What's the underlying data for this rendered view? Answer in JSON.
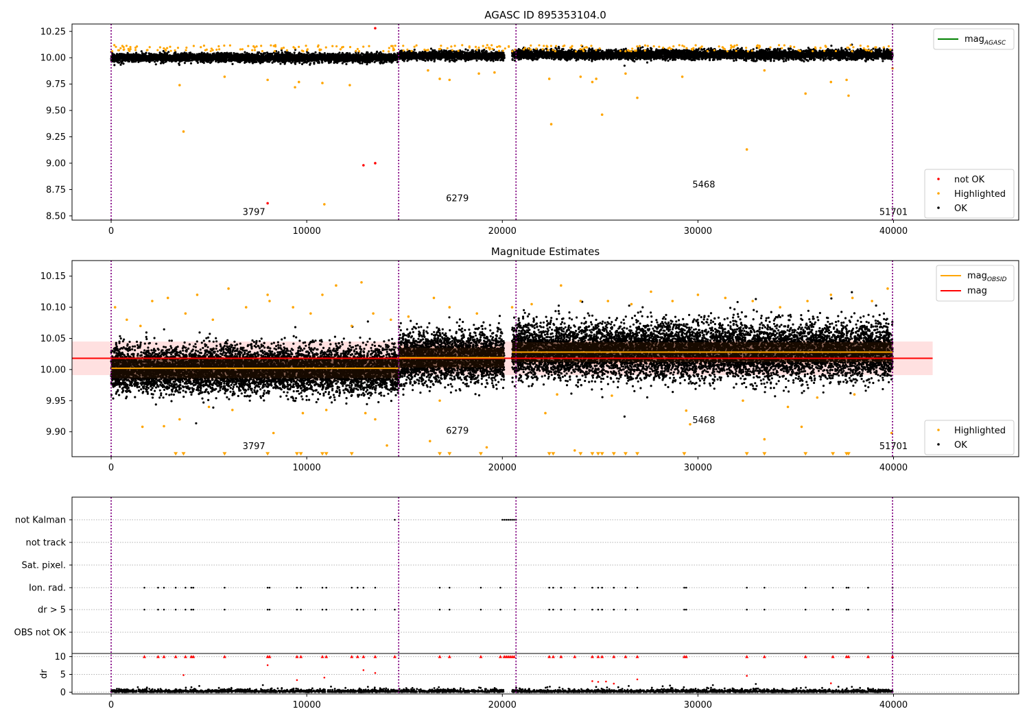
{
  "chart_data": [
    {
      "type": "scatter",
      "title": "AGASC ID 895353104.0",
      "xlim": [
        -2000,
        46400
      ],
      "ylim": [
        8.46,
        10.32
      ],
      "xticks": [
        0,
        10000,
        20000,
        30000,
        40000
      ],
      "xtick_labels": [
        "0",
        "10000",
        "20000",
        "30000",
        "40000"
      ],
      "yticks": [
        8.5,
        8.75,
        9.0,
        9.25,
        9.5,
        9.75,
        10.0,
        10.25
      ],
      "ytick_labels": [
        "8.50",
        "8.75",
        "9.00",
        "9.25",
        "9.50",
        "9.75",
        "10.00",
        "10.25"
      ],
      "obsid_boundaries": [
        0,
        14700,
        20700,
        39950
      ],
      "obsid_labels": [
        {
          "text": "3797",
          "x": 7300,
          "y": 8.51
        },
        {
          "text": "6279",
          "x": 17700,
          "y": 8.64
        },
        {
          "text": "5468",
          "x": 30300,
          "y": 8.77
        },
        {
          "text": "51701",
          "x": 40000,
          "y": 8.51
        }
      ],
      "line_legend": {
        "position": "upper right",
        "entries": [
          {
            "label": "mag",
            "sub": "AGASC",
            "color": "#008000"
          }
        ]
      },
      "marker_legend": {
        "position": "lower right",
        "entries": [
          {
            "label": "not OK",
            "color": "#ff0000"
          },
          {
            "label": "Highlighted",
            "color": "#ffa500"
          },
          {
            "label": "OK",
            "color": "#000000"
          }
        ]
      },
      "series": [
        {
          "name": "OK",
          "color": "#000000",
          "segments": [
            {
              "x_range": [
                0,
                14700
              ],
              "center": 10.0,
              "spread": 0.02
            },
            {
              "x_range": [
                14700,
                20100
              ],
              "center": 10.02,
              "spread": 0.02
            },
            {
              "x_range": [
                20500,
                39950
              ],
              "center": 10.03,
              "spread": 0.022
            }
          ]
        },
        {
          "name": "Highlighted",
          "color": "#ffa500",
          "points": [
            [
              3500,
              9.74
            ],
            [
              3700,
              9.3
            ],
            [
              5800,
              9.82
            ],
            [
              8000,
              9.79
            ],
            [
              9400,
              9.72
            ],
            [
              9600,
              9.77
            ],
            [
              10800,
              9.76
            ],
            [
              10900,
              8.61
            ],
            [
              12200,
              9.74
            ],
            [
              16200,
              9.88
            ],
            [
              16800,
              9.8
            ],
            [
              17300,
              9.79
            ],
            [
              18800,
              9.85
            ],
            [
              19600,
              9.86
            ],
            [
              22400,
              9.8
            ],
            [
              22500,
              9.37
            ],
            [
              24000,
              9.82
            ],
            [
              24600,
              9.77
            ],
            [
              24800,
              9.8
            ],
            [
              25100,
              9.46
            ],
            [
              26300,
              9.85
            ],
            [
              26900,
              9.62
            ],
            [
              29200,
              9.82
            ],
            [
              32500,
              9.13
            ],
            [
              33400,
              9.88
            ],
            [
              35500,
              9.66
            ],
            [
              36800,
              9.77
            ],
            [
              37600,
              9.79
            ],
            [
              37700,
              9.64
            ],
            [
              39950,
              9.9
            ]
          ]
        },
        {
          "name": "not OK",
          "color": "#ff0000",
          "points": [
            [
              8000,
              8.62
            ],
            [
              12900,
              8.98
            ],
            [
              13500,
              9.0
            ],
            [
              13500,
              10.28
            ]
          ]
        }
      ]
    },
    {
      "type": "scatter",
      "title": "Magnitude Estimates",
      "xlim": [
        -2000,
        46400
      ],
      "ylim": [
        9.86,
        10.175
      ],
      "xticks": [
        0,
        10000,
        20000,
        30000,
        40000
      ],
      "xtick_labels": [
        "0",
        "10000",
        "20000",
        "30000",
        "40000"
      ],
      "yticks": [
        9.9,
        9.95,
        10.0,
        10.05,
        10.1,
        10.15
      ],
      "ytick_labels": [
        "9.90",
        "9.95",
        "10.00",
        "10.05",
        "10.10",
        "10.15"
      ],
      "obsid_boundaries": [
        0,
        14700,
        20700,
        39950
      ],
      "obsid_labels": [
        {
          "text": "3797",
          "x": 7300,
          "y": 9.872
        },
        {
          "text": "6279",
          "x": 17700,
          "y": 9.897
        },
        {
          "text": "5468",
          "x": 30300,
          "y": 9.914
        },
        {
          "text": "51701",
          "x": 40000,
          "y": 9.872
        }
      ],
      "mag_band": {
        "center": 10.018,
        "half_width": 0.027,
        "x_range": [
          -2000,
          42000
        ]
      },
      "mag_obsid": [
        {
          "x_range": [
            0,
            14700
          ],
          "value": 10.002
        },
        {
          "x_range": [
            14700,
            20100
          ],
          "value": 10.019
        },
        {
          "x_range": [
            20500,
            39950
          ],
          "value": 10.028
        }
      ],
      "line_legend": {
        "position": "upper right",
        "entries": [
          {
            "label": "mag",
            "sub": "OBSID",
            "color": "#ffa500"
          },
          {
            "label": "mag",
            "sub": "",
            "color": "#ff0000"
          }
        ]
      },
      "marker_legend": {
        "position": "lower right",
        "entries": [
          {
            "label": "Highlighted",
            "color": "#ffa500"
          },
          {
            "label": "OK",
            "color": "#000000"
          }
        ]
      },
      "series": [
        {
          "name": "OK",
          "color": "#000000",
          "segments": [
            {
              "x_range": [
                0,
                14700
              ],
              "center": 10.0,
              "spread": 0.018
            },
            {
              "x_range": [
                14700,
                20100
              ],
              "center": 10.02,
              "spread": 0.02
            },
            {
              "x_range": [
                20500,
                39950
              ],
              "center": 10.03,
              "spread": 0.022
            }
          ]
        },
        {
          "name": "Highlighted",
          "color": "#ffa500",
          "points": [
            [
              200,
              10.1
            ],
            [
              800,
              10.08
            ],
            [
              1500,
              10.07
            ],
            [
              2100,
              10.11
            ],
            [
              2900,
              10.115
            ],
            [
              3800,
              10.09
            ],
            [
              4400,
              10.12
            ],
            [
              5200,
              10.08
            ],
            [
              6000,
              10.13
            ],
            [
              6900,
              10.1
            ],
            [
              8000,
              10.12
            ],
            [
              8100,
              10.11
            ],
            [
              9300,
              10.1
            ],
            [
              10200,
              10.09
            ],
            [
              10800,
              10.12
            ],
            [
              11500,
              10.135
            ],
            [
              12300,
              10.07
            ],
            [
              12800,
              10.14
            ],
            [
              13400,
              10.09
            ],
            [
              14300,
              10.08
            ],
            [
              15200,
              10.085
            ],
            [
              16500,
              10.115
            ],
            [
              17300,
              10.1
            ],
            [
              18700,
              10.09
            ],
            [
              20500,
              10.1
            ],
            [
              21500,
              10.105
            ],
            [
              23000,
              10.135
            ],
            [
              24000,
              10.11
            ],
            [
              25400,
              10.11
            ],
            [
              26600,
              10.105
            ],
            [
              27600,
              10.125
            ],
            [
              28700,
              10.11
            ],
            [
              30000,
              10.12
            ],
            [
              31400,
              10.115
            ],
            [
              32800,
              10.11
            ],
            [
              34200,
              10.1
            ],
            [
              35600,
              10.11
            ],
            [
              36800,
              10.12
            ],
            [
              37900,
              10.115
            ],
            [
              38900,
              10.11
            ],
            [
              39700,
              10.13
            ],
            [
              1600,
              9.908
            ],
            [
              2700,
              9.909
            ],
            [
              3500,
              9.92
            ],
            [
              5000,
              9.94
            ],
            [
              6200,
              9.935
            ],
            [
              8300,
              9.898
            ],
            [
              9800,
              9.93
            ],
            [
              11000,
              9.935
            ],
            [
              13000,
              9.93
            ],
            [
              13500,
              9.92
            ],
            [
              14100,
              9.878
            ],
            [
              16300,
              9.885
            ],
            [
              16800,
              9.95
            ],
            [
              19200,
              9.875
            ],
            [
              22200,
              9.93
            ],
            [
              22800,
              9.96
            ],
            [
              23700,
              9.87
            ],
            [
              25600,
              9.958
            ],
            [
              29400,
              9.934
            ],
            [
              29600,
              9.912
            ],
            [
              32300,
              9.95
            ],
            [
              33400,
              9.888
            ],
            [
              34600,
              9.94
            ],
            [
              35300,
              9.908
            ],
            [
              36100,
              9.955
            ],
            [
              38000,
              9.96
            ],
            [
              39900,
              9.898
            ]
          ]
        },
        {
          "name": "Highlighted (below axis)",
          "color": "#ffa500",
          "marker": "triangle-down",
          "points": [
            [
              3300,
              9.864
            ],
            [
              3700,
              9.864
            ],
            [
              5800,
              9.864
            ],
            [
              8000,
              9.864
            ],
            [
              9500,
              9.864
            ],
            [
              9700,
              9.864
            ],
            [
              10800,
              9.864
            ],
            [
              11000,
              9.864
            ],
            [
              12300,
              9.864
            ],
            [
              16800,
              9.864
            ],
            [
              17300,
              9.864
            ],
            [
              18900,
              9.864
            ],
            [
              22400,
              9.864
            ],
            [
              22600,
              9.864
            ],
            [
              24000,
              9.864
            ],
            [
              24600,
              9.864
            ],
            [
              24900,
              9.864
            ],
            [
              25100,
              9.864
            ],
            [
              25700,
              9.864
            ],
            [
              26300,
              9.864
            ],
            [
              26900,
              9.864
            ],
            [
              29300,
              9.864
            ],
            [
              32500,
              9.864
            ],
            [
              33400,
              9.864
            ],
            [
              35500,
              9.864
            ],
            [
              36900,
              9.864
            ],
            [
              37600,
              9.864
            ],
            [
              37700,
              9.864
            ]
          ]
        }
      ]
    },
    {
      "type": "scatter",
      "title": "",
      "xlim": [
        -2000,
        46400
      ],
      "xticks": [
        0,
        10000,
        20000,
        30000,
        40000
      ],
      "xtick_labels": [
        "0",
        "10000",
        "20000",
        "30000",
        "40000"
      ],
      "flag_rows": [
        "not Kalman",
        "not track",
        "Sat. pixel.",
        "Ion. rad.",
        "dr > 5",
        "OBS not OK"
      ],
      "obsid_boundaries": [
        0,
        14700,
        20700,
        39950
      ],
      "flags": {
        "not Kalman": [
          14500,
          20000,
          20100,
          20200,
          20300,
          20400,
          20500,
          20600,
          20700
        ],
        "not track": [],
        "Sat. pixel.": [],
        "Ion. rad.": [
          1700,
          2400,
          2700,
          3300,
          3800,
          4100,
          4200,
          5800,
          8000,
          8100,
          9500,
          9700,
          10800,
          11000,
          12300,
          12600,
          12900,
          13500,
          16800,
          17300,
          18900,
          19900,
          22400,
          22600,
          23000,
          23700,
          24600,
          24900,
          25100,
          25700,
          26300,
          26900,
          29300,
          29400,
          32500,
          33400,
          35500,
          36900,
          37600,
          37700,
          38700,
          39950
        ],
        "dr > 5": [
          1700,
          2400,
          2700,
          3300,
          3800,
          4100,
          4200,
          5800,
          8000,
          8100,
          9500,
          9700,
          10800,
          11000,
          12300,
          12600,
          12900,
          13500,
          14500,
          16800,
          17300,
          18900,
          19900,
          22400,
          22600,
          23000,
          23700,
          24600,
          24900,
          25100,
          25700,
          26300,
          26900,
          29300,
          29400,
          32500,
          33400,
          35500,
          36900,
          37600,
          37700,
          38700,
          39950
        ],
        "OBS not OK": []
      },
      "dr": {
        "ylim": [
          -0.5,
          10.5
        ],
        "yticks": [
          0,
          5,
          10
        ],
        "ytick_labels": [
          "0",
          "5",
          "10"
        ],
        "ylabel": "dr",
        "capped_points": [
          1700,
          2400,
          2700,
          3300,
          3800,
          4100,
          4200,
          5800,
          8000,
          8100,
          9500,
          9700,
          10800,
          11000,
          12300,
          12600,
          12900,
          13500,
          14500,
          16800,
          17300,
          18900,
          19900,
          20100,
          20200,
          20300,
          20400,
          20500,
          20600,
          22400,
          22600,
          23000,
          23700,
          24600,
          24900,
          25100,
          25700,
          26300,
          26900,
          29300,
          29400,
          32500,
          33400,
          35500,
          36900,
          37600,
          37700,
          38700,
          39950
        ],
        "outliers": [
          [
            3700,
            4.8
          ],
          [
            8000,
            7.6
          ],
          [
            9500,
            3.4
          ],
          [
            10900,
            4.1
          ],
          [
            12900,
            6.2
          ],
          [
            13500,
            5.4
          ],
          [
            24600,
            3.1
          ],
          [
            24900,
            2.9
          ],
          [
            25300,
            3.0
          ],
          [
            25700,
            2.4
          ],
          [
            26900,
            3.6
          ],
          [
            32500,
            4.6
          ],
          [
            36800,
            2.5
          ]
        ]
      }
    }
  ]
}
